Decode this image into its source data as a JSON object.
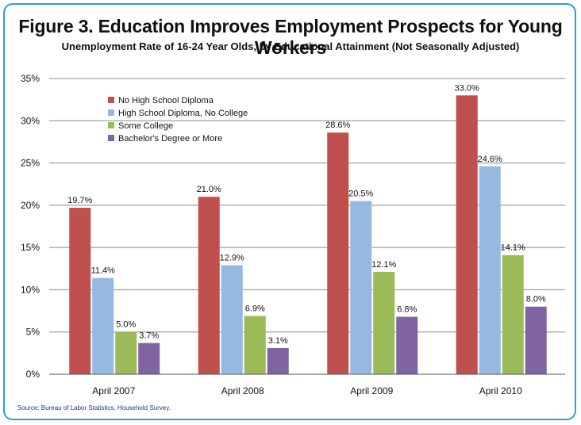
{
  "title": "Figure 3. Education Improves Employment Prospects for Young Workers",
  "subtitle": "Unemployment Rate of 16-24 Year Olds, by Educational Attainment (Not Seasonally Adjusted)",
  "source": "Source: Bureau of Labor Statistics, Household Survey.",
  "colors": {
    "border": "#2aa0d8"
  },
  "chart_data": {
    "type": "bar",
    "categories": [
      "April 2007",
      "April 2008",
      "April 2009",
      "April 2010"
    ],
    "series": [
      {
        "name": "No High School Diploma",
        "color": "#c0504d",
        "values": [
          19.7,
          21.0,
          28.6,
          33.0
        ],
        "labels": [
          "19.7%",
          "21.0%",
          "28.6%",
          "33.0%"
        ]
      },
      {
        "name": "High School Diploma, No College",
        "color": "#95b9e0",
        "values": [
          11.4,
          12.9,
          20.5,
          24.6
        ],
        "labels": [
          "11.4%",
          "12.9%",
          "20.5%",
          "24.6%"
        ]
      },
      {
        "name": "Some College",
        "color": "#9bbb59",
        "values": [
          5.0,
          6.9,
          12.1,
          14.1
        ],
        "labels": [
          "5.0%",
          "6.9%",
          "12.1%",
          "14.1%"
        ]
      },
      {
        "name": "Bachelor's Degree or More",
        "color": "#8064a2",
        "values": [
          3.7,
          3.1,
          6.8,
          8.0
        ],
        "labels": [
          "3.7%",
          "3.1%",
          "6.8%",
          "8.0%"
        ]
      }
    ],
    "yticks": [
      "0%",
      "5%",
      "10%",
      "15%",
      "20%",
      "25%",
      "30%",
      "35%"
    ],
    "ylim": [
      0,
      35
    ],
    "grid": true,
    "legend_position": "top-left"
  }
}
